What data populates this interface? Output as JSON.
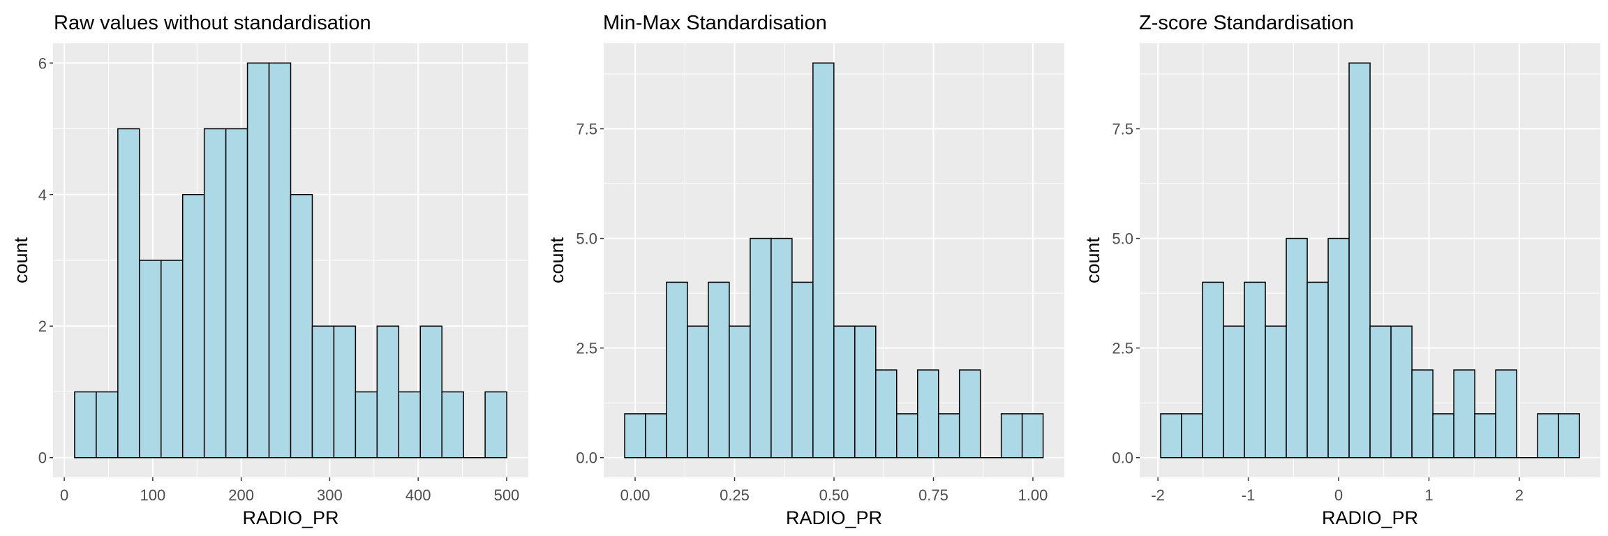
{
  "chart_data": [
    {
      "type": "bar",
      "title": "Raw values without standardisation",
      "xlabel": "RADIO_PR",
      "ylabel": "count",
      "bin_start": 11.7,
      "bin_width": 24.42,
      "values": [
        1,
        1,
        5,
        3,
        3,
        4,
        5,
        5,
        6,
        6,
        4,
        2,
        2,
        1,
        2,
        1,
        2,
        1,
        0,
        1
      ],
      "xlim": [
        -12.7,
        524.5
      ],
      "ylim": [
        -0.3,
        6.3
      ],
      "xticks": [
        0,
        100,
        200,
        300,
        400,
        500
      ],
      "xtick_labels": [
        "0",
        "100",
        "200",
        "300",
        "400",
        "500"
      ],
      "xminor": [
        50,
        150,
        250,
        350,
        450
      ],
      "yticks": [
        0,
        2,
        4,
        6
      ],
      "ytick_labels": [
        "0",
        "2",
        "4",
        "6"
      ],
      "yminor": [
        1,
        3,
        5
      ],
      "grid": true,
      "colors": {
        "panel": "#EBEBEB",
        "bar_fill": "#ADD8E6",
        "bar_edge": "#000000",
        "grid": "#FFFFFF"
      }
    },
    {
      "type": "bar",
      "title": "Min-Max Standardisation",
      "xlabel": "RADIO_PR",
      "ylabel": "count",
      "bin_start": -0.0263,
      "bin_width": 0.0526,
      "values": [
        1,
        1,
        4,
        3,
        4,
        3,
        5,
        5,
        4,
        9,
        3,
        3,
        2,
        1,
        2,
        1,
        2,
        0,
        1,
        1
      ],
      "xlim": [
        -0.079,
        1.079
      ],
      "ylim": [
        -0.45,
        9.45
      ],
      "xticks": [
        0,
        0.25,
        0.5,
        0.75,
        1
      ],
      "xtick_labels": [
        "0.00",
        "0.25",
        "0.50",
        "0.75",
        "1.00"
      ],
      "xminor": [
        0.125,
        0.375,
        0.625,
        0.875
      ],
      "yticks": [
        0,
        2.5,
        5,
        7.5
      ],
      "ytick_labels": [
        "0.0",
        "2.5",
        "5.0",
        "7.5"
      ],
      "yminor": [
        1.25,
        3.75,
        6.25,
        8.75
      ],
      "grid": true,
      "colors": {
        "panel": "#EBEBEB",
        "bar_fill": "#ADD8E6",
        "bar_edge": "#000000",
        "grid": "#FFFFFF"
      }
    },
    {
      "type": "bar",
      "title": "Z-score Standardisation",
      "xlabel": "RADIO_PR",
      "ylabel": "count",
      "bin_start": -1.97,
      "bin_width": 0.2318,
      "values": [
        1,
        1,
        4,
        3,
        4,
        3,
        5,
        4,
        5,
        9,
        3,
        3,
        2,
        1,
        2,
        1,
        2,
        0,
        1,
        1
      ],
      "xlim": [
        -2.202,
        2.897
      ],
      "ylim": [
        -0.45,
        9.45
      ],
      "xticks": [
        -2,
        -1,
        0,
        1,
        2
      ],
      "xtick_labels": [
        "-2",
        "-1",
        "0",
        "1",
        "2"
      ],
      "xminor": [
        -1.5,
        -0.5,
        0.5,
        1.5,
        2.5
      ],
      "yticks": [
        0,
        2.5,
        5,
        7.5
      ],
      "ytick_labels": [
        "0.0",
        "2.5",
        "5.0",
        "7.5"
      ],
      "yminor": [
        1.25,
        3.75,
        6.25,
        8.75
      ],
      "grid": true,
      "colors": {
        "panel": "#EBEBEB",
        "bar_fill": "#ADD8E6",
        "bar_edge": "#000000",
        "grid": "#FFFFFF"
      }
    }
  ]
}
